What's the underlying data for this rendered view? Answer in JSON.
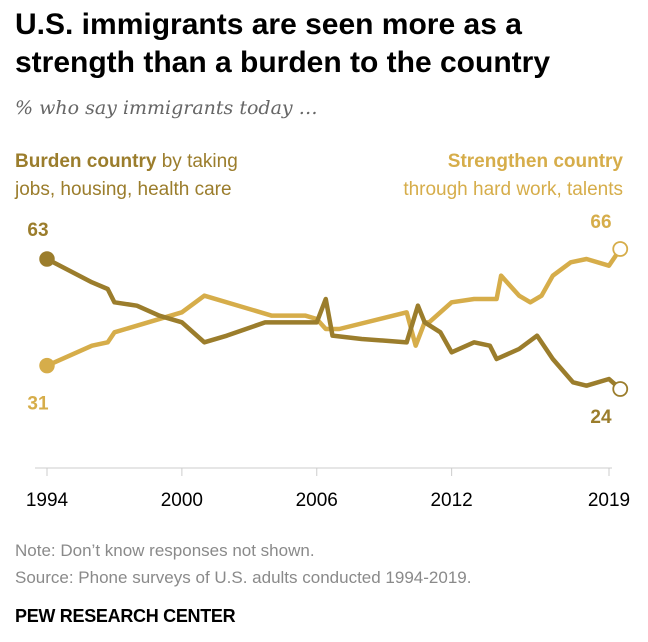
{
  "header": {
    "title": "U.S. immigrants are seen more as a strength than a burden to the country",
    "subtitle": "% who say immigrants today …"
  },
  "legend": {
    "burden_bold": "Burden country",
    "burden_rest_line1": " by taking",
    "burden_line2": "jobs, housing, health care",
    "strength_bold": "Strengthen country",
    "strength_line2": "through hard work, talents"
  },
  "footer": {
    "note": "Note: Don’t know responses not shown.",
    "source": "Source: Phone surveys of U.S. adults conducted 1994-2019.",
    "brand": "PEW RESEARCH CENTER"
  },
  "colors": {
    "burden": "#9b7d2c",
    "strength": "#d6ad4a",
    "axis": "#cccccc"
  },
  "chart_data": {
    "type": "line",
    "title": "U.S. immigrants are seen more as a strength than a burden to the country",
    "xlabel": "",
    "ylabel": "%",
    "xlim": [
      1994,
      2019
    ],
    "ylim": [
      0,
      80
    ],
    "x_ticks": [
      1994,
      2000,
      2006,
      2012,
      2019
    ],
    "x_tick_labels": [
      "1994",
      "2000",
      "2006",
      "2012",
      "2019"
    ],
    "series": [
      {
        "name": "Burden country",
        "color": "#9b7d2c",
        "start_label": "63",
        "end_label": "24",
        "points": [
          [
            1994,
            63
          ],
          [
            1996,
            56
          ],
          [
            1996.7,
            54
          ],
          [
            1997,
            50
          ],
          [
            1998,
            49
          ],
          [
            1999,
            46
          ],
          [
            2000,
            44
          ],
          [
            2001,
            38
          ],
          [
            2002,
            40
          ],
          [
            2003.7,
            44
          ],
          [
            2005,
            44
          ],
          [
            2006,
            44
          ],
          [
            2006.4,
            51
          ],
          [
            2006.7,
            40
          ],
          [
            2008,
            39
          ],
          [
            2010,
            38
          ],
          [
            2010.5,
            49
          ],
          [
            2010.8,
            44
          ],
          [
            2011.5,
            41
          ],
          [
            2012,
            35
          ],
          [
            2013,
            38
          ],
          [
            2013.7,
            37
          ],
          [
            2014,
            33
          ],
          [
            2015,
            36
          ],
          [
            2015.8,
            40
          ],
          [
            2016.5,
            33
          ],
          [
            2017.4,
            26
          ],
          [
            2018,
            25
          ],
          [
            2019,
            27
          ],
          [
            2019.5,
            24
          ]
        ]
      },
      {
        "name": "Strengthen country",
        "color": "#d6ad4a",
        "start_label": "31",
        "end_label": "66",
        "points": [
          [
            1994,
            31
          ],
          [
            1996,
            37
          ],
          [
            1996.7,
            38
          ],
          [
            1997,
            41
          ],
          [
            1998,
            43
          ],
          [
            2000,
            47
          ],
          [
            2001,
            52
          ],
          [
            2004,
            46
          ],
          [
            2005.5,
            46
          ],
          [
            2006,
            45
          ],
          [
            2006.4,
            42
          ],
          [
            2007,
            42
          ],
          [
            2010,
            47
          ],
          [
            2010.4,
            37
          ],
          [
            2010.8,
            44
          ],
          [
            2011,
            44
          ],
          [
            2012,
            50
          ],
          [
            2013,
            51
          ],
          [
            2014,
            51
          ],
          [
            2014.2,
            58
          ],
          [
            2015,
            52
          ],
          [
            2015.5,
            50
          ],
          [
            2016,
            52
          ],
          [
            2016.5,
            58
          ],
          [
            2017.3,
            62
          ],
          [
            2018,
            63
          ],
          [
            2019,
            61
          ],
          [
            2019.5,
            66
          ]
        ]
      }
    ]
  }
}
